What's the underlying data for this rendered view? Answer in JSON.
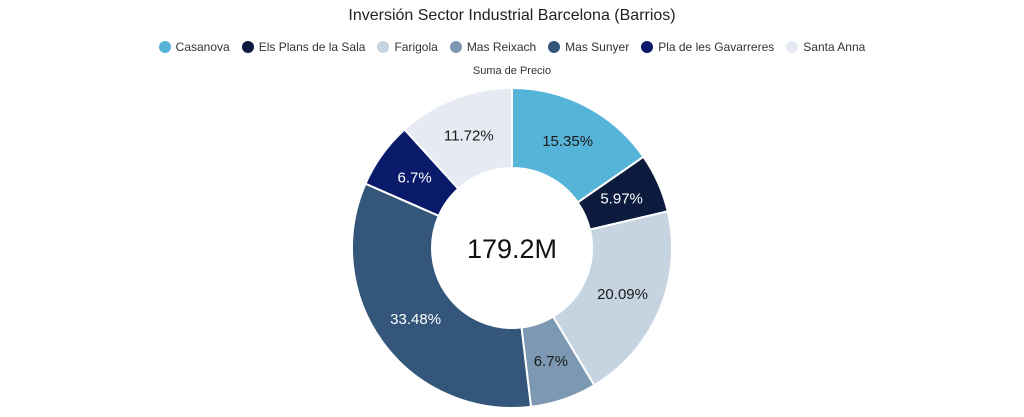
{
  "chart_data": {
    "type": "pie",
    "title": "Inversión Sector Industrial Barcelona (Barrios)",
    "subtitle": "Suma de Precio",
    "center_label": "179.2M",
    "legend_position": "top",
    "slices": [
      {
        "name": "Casanova",
        "percent": 15.35,
        "label": "15.35%",
        "color": "#56B4D9",
        "label_color": "#1a1a1a"
      },
      {
        "name": "Els Plans de la Sala",
        "percent": 5.97,
        "label": "5.97%",
        "color": "#0B1A3D",
        "label_color": "#ffffff"
      },
      {
        "name": "Farigola",
        "percent": 20.09,
        "label": "20.09%",
        "color": "#C6D3E1",
        "label_color": "#1a1a1a"
      },
      {
        "name": "Mas Reixach",
        "percent": 6.7,
        "label": "6.7%",
        "color": "#7C98B3",
        "label_color": "#1a1a1a"
      },
      {
        "name": "Mas Sunyer",
        "percent": 33.48,
        "label": "33.48%",
        "color": "#33567A",
        "label_color": "#ffffff"
      },
      {
        "name": "Pla de les Gavarreres",
        "percent": 6.7,
        "label": "6.7%",
        "color": "#0A1A6B",
        "label_color": "#ffffff"
      },
      {
        "name": "Santa Anna",
        "percent": 11.72,
        "label": "11.72%",
        "color": "#E6EAF2",
        "label_color": "#1a1a1a"
      }
    ]
  }
}
